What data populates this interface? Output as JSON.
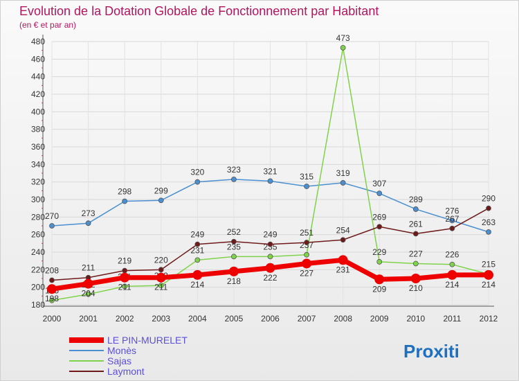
{
  "chart_data": {
    "type": "line",
    "title": "Evolution de la Dotation Globale de Fonctionnement par Habitant",
    "subtitle": "(en € et par an)",
    "x": [
      "2000",
      "2001",
      "2002",
      "2003",
      "2004",
      "2005",
      "2006",
      "2007",
      "2008",
      "2009",
      "2010",
      "2011",
      "2012"
    ],
    "ylim": [
      180,
      480
    ],
    "yticks": [
      180,
      200,
      220,
      240,
      260,
      280,
      300,
      320,
      340,
      360,
      380,
      400,
      420,
      440,
      460,
      480
    ],
    "grid": true,
    "legend_position": "bottom-left",
    "series": [
      {
        "name": "Monès",
        "color": "#4a8fd0",
        "values": [
          270,
          273,
          298,
          299,
          320,
          323,
          321,
          315,
          319,
          307,
          289,
          276,
          263
        ]
      },
      {
        "name": "Sajas",
        "color": "#7fd34a",
        "values": [
          185,
          192,
          201,
          202,
          231,
          235,
          235,
          237,
          473,
          229,
          227,
          226,
          215
        ]
      },
      {
        "name": "Laymont",
        "color": "#6e1a1a",
        "values": [
          208,
          211,
          219,
          220,
          249,
          252,
          249,
          251,
          254,
          269,
          261,
          267,
          290
        ]
      },
      {
        "name": "LE PIN-MURELET",
        "color": "#ee0000",
        "values": [
          198,
          204,
          211,
          211,
          214,
          218,
          222,
          227,
          231,
          209,
          210,
          214,
          214
        ]
      }
    ]
  },
  "logo": {
    "text": "Proxiti"
  }
}
